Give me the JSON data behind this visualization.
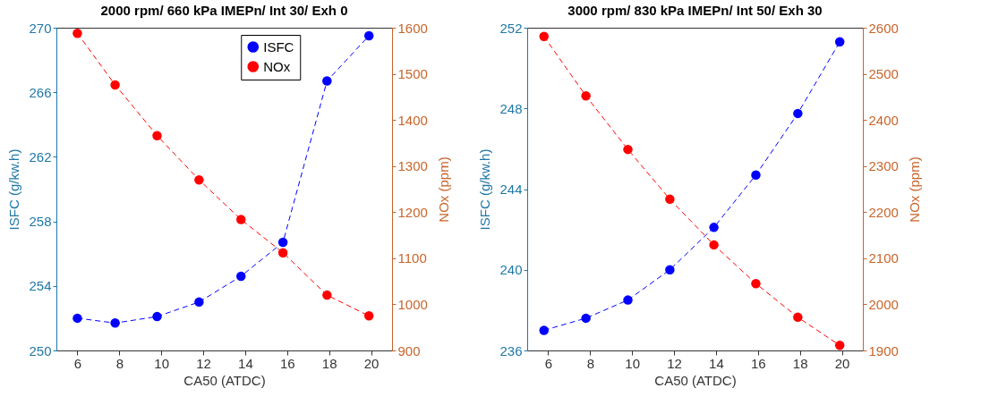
{
  "chart_data": [
    {
      "type": "line",
      "title": "2000 rpm/ 660 kPa IMEPn/ Int 30/ Exh 0",
      "xlabel": "CA50 (ATDC)",
      "ylabel": "ISFC (g/kw.h)",
      "y2label": "NOx (ppm)",
      "x": [
        6.0,
        7.8,
        9.8,
        11.8,
        13.8,
        15.8,
        17.9,
        19.9
      ],
      "xlim": [
        5,
        21
      ],
      "xticks": [
        6,
        8,
        10,
        12,
        14,
        16,
        18,
        20
      ],
      "ylim": [
        250,
        270
      ],
      "yticks": [
        250,
        254,
        258,
        262,
        266,
        270
      ],
      "y2lim": [
        900,
        1600
      ],
      "y2ticks": [
        900,
        1000,
        1100,
        1200,
        1300,
        1400,
        1500,
        1600
      ],
      "series": [
        {
          "name": "ISFC",
          "color": "#0000ff",
          "values": [
            252.0,
            251.7,
            252.1,
            253.0,
            254.6,
            256.7,
            266.7,
            269.5
          ]
        },
        {
          "name": "NOx",
          "color": "#ff0000",
          "axis": "y2",
          "values": [
            1588,
            1476,
            1366,
            1270,
            1184,
            1112,
            1020,
            975
          ]
        }
      ],
      "legend": "top",
      "marker": "circle",
      "line_style": "dashed",
      "grid": false
    },
    {
      "type": "line",
      "title": "3000 rpm/ 830 kPa IMEPn/ Int 50/ Exh 30",
      "xlabel": "CA50 (ATDC)",
      "ylabel": "ISFC (g/kw.h)",
      "y2label": "NOx (ppm)",
      "x": [
        5.8,
        7.8,
        9.8,
        11.8,
        13.9,
        15.9,
        17.9,
        19.9
      ],
      "xlim": [
        5,
        21
      ],
      "xticks": [
        6,
        8,
        10,
        12,
        14,
        16,
        18,
        20
      ],
      "ylim": [
        236,
        252
      ],
      "yticks": [
        236,
        240,
        244,
        248,
        252
      ],
      "y2lim": [
        1900,
        2600
      ],
      "y2ticks": [
        1900,
        2000,
        2100,
        2200,
        2300,
        2400,
        2500,
        2600
      ],
      "series": [
        {
          "name": "ISFC",
          "color": "#0000ff",
          "values": [
            237.0,
            237.6,
            238.5,
            240.0,
            242.1,
            244.7,
            247.75,
            251.3
          ]
        },
        {
          "name": "NOx",
          "color": "#ff0000",
          "axis": "y2",
          "values": [
            2581,
            2452,
            2336,
            2228,
            2129,
            2045,
            1972,
            1911
          ]
        }
      ],
      "legend": "top",
      "marker": "circle",
      "line_style": "dashed",
      "grid": false
    }
  ]
}
